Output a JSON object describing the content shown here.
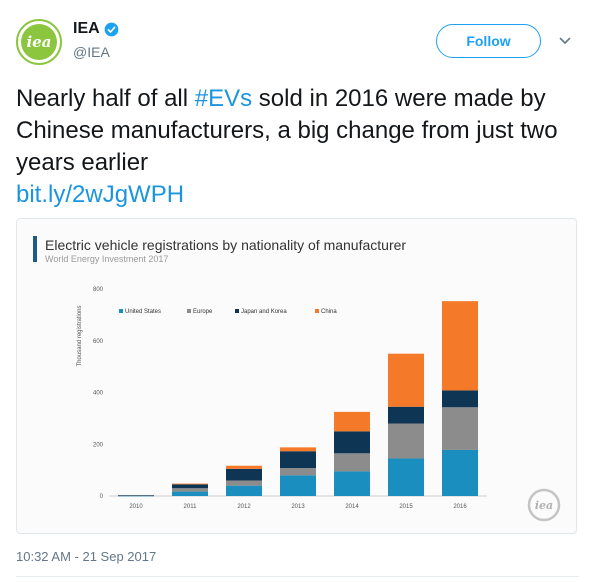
{
  "author": {
    "name": "IEA",
    "handle": "@IEA",
    "avatar_text": "iea",
    "verified": true,
    "accent_color": "#8cc63f"
  },
  "follow_label": "Follow",
  "menu_icon": "chevron-down-icon",
  "tweet": {
    "text_before": "Nearly half of all ",
    "hashtag": "#EVs",
    "text_after": " sold in 2016 were made by Chinese manufacturers, a big change from just two years earlier",
    "link": "bit.ly/2wJgWPH"
  },
  "timestamp": "10:32 AM - 21 Sep 2017",
  "watermark_text": "iea",
  "chart_data": {
    "type": "bar",
    "stacked": true,
    "title": "Electric vehicle registrations by nationality of manufacturer",
    "subtitle": "World Energy Investment 2017",
    "xlabel": "",
    "ylabel": "Thousand registrations",
    "ylim": [
      0,
      800
    ],
    "yticks": [
      0,
      200,
      400,
      600,
      800
    ],
    "grid": false,
    "legend_position": "top-left",
    "categories": [
      "2010",
      "2011",
      "2012",
      "2013",
      "2014",
      "2015",
      "2016"
    ],
    "series": [
      {
        "name": "United States",
        "color": "#1a8fbf",
        "values": [
          1,
          17,
          40,
          80,
          95,
          145,
          178
        ]
      },
      {
        "name": "Europe",
        "color": "#8c8c8c",
        "values": [
          1,
          13,
          20,
          28,
          70,
          135,
          165
        ]
      },
      {
        "name": "Japan and Korea",
        "color": "#0f3554",
        "values": [
          1,
          15,
          45,
          65,
          85,
          65,
          65
        ]
      },
      {
        "name": "China",
        "color": "#f47a2a",
        "values": [
          0,
          3,
          12,
          15,
          75,
          205,
          345
        ]
      }
    ]
  }
}
